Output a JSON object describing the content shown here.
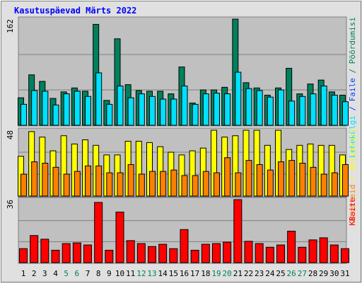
{
  "title": "Kasutuspäevad Märts 2022",
  "legend_separator": " / ",
  "weekend": [
    "5",
    "6",
    "12",
    "13",
    "19",
    "20",
    "26",
    "27"
  ],
  "weekend_color": "#00805c",
  "chart_data": [
    {
      "type": "bar",
      "ylim": [
        0,
        162
      ],
      "yticks": [
        162
      ],
      "series": [
        {
          "name": "Pöördumisi",
          "color": "#00805c",
          "values": [
            42,
            77,
            67,
            41,
            51,
            57,
            52,
            154,
            38,
            132,
            62,
            53,
            52,
            52,
            48,
            89,
            34,
            54,
            54,
            58,
            162,
            65,
            57,
            46,
            57,
            87,
            48,
            63,
            69,
            51,
            46
          ]
        },
        {
          "name": "Faile",
          "color": "#0040ff",
          "values": null
        },
        {
          "name": "Lehekülgi",
          "color": "#00e0ff",
          "values": [
            32,
            53,
            52,
            31,
            48,
            52,
            44,
            80,
            32,
            60,
            42,
            48,
            44,
            40,
            40,
            60,
            32,
            48,
            49,
            48,
            81,
            56,
            53,
            43,
            54,
            37,
            44,
            48,
            60,
            46,
            36
          ]
        }
      ]
    },
    {
      "type": "bar",
      "ylim": [
        0,
        48
      ],
      "yticks": [
        48
      ],
      "series": [
        {
          "name": "Külastusi",
          "color": "#ffff00",
          "values": [
            29,
            47,
            43,
            33,
            44,
            38,
            41,
            37,
            30,
            30,
            40,
            40,
            39,
            36,
            32,
            30,
            33,
            35,
            48,
            43,
            44,
            48,
            48,
            37,
            48,
            34,
            37,
            38,
            37,
            37,
            30
          ]
        },
        {
          "name": "Arvuteid",
          "color": "#ff8000",
          "values": [
            16,
            25,
            24,
            21,
            16,
            18,
            22,
            22,
            17,
            17,
            23,
            16,
            18,
            18,
            19,
            15,
            15,
            18,
            17,
            28,
            17,
            26,
            23,
            19,
            25,
            26,
            24,
            21,
            16,
            17,
            23
          ]
        }
      ]
    },
    {
      "type": "bar",
      "ylim": [
        0,
        36
      ],
      "yticks": [
        36
      ],
      "categories": [
        "1",
        "2",
        "3",
        "4",
        "5",
        "6",
        "7",
        "8",
        "9",
        "10",
        "11",
        "12",
        "13",
        "14",
        "15",
        "16",
        "17",
        "18",
        "19",
        "20",
        "21",
        "22",
        "23",
        "24",
        "25",
        "26",
        "27",
        "28",
        "29",
        "30",
        "31"
      ],
      "series": [
        {
          "name": "KBaite",
          "color": "#ff0000",
          "values": [
            8,
            15.5,
            13.4,
            7.1,
            10.9,
            11.3,
            10.1,
            34.4,
            7.1,
            28.9,
            12.6,
            10.9,
            9.2,
            10.5,
            8,
            18.9,
            7.1,
            10.5,
            10.9,
            11.7,
            36,
            12.2,
            10.9,
            8.8,
            10.1,
            18,
            8.8,
            13,
            14.2,
            10.1,
            8
          ]
        }
      ]
    }
  ]
}
